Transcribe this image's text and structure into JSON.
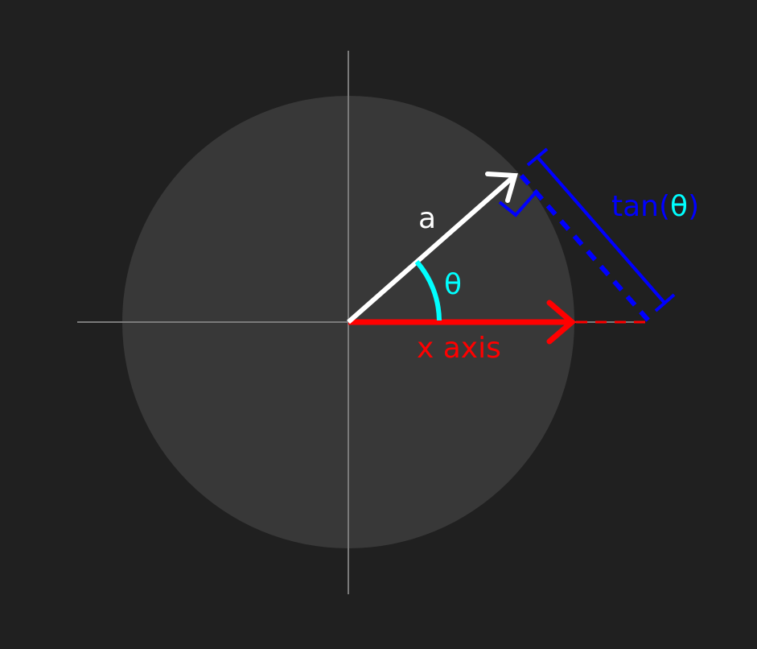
{
  "diagram": {
    "background_color": "#202020",
    "circle_color": "#383838",
    "axes_color": "#7a7a7a",
    "vector_color": "#ffffff",
    "angle_color": "#00ffff",
    "x_axis_color": "#ff0000",
    "tangent_color": "#0000ff",
    "labels": {
      "vector": "a",
      "angle": "θ",
      "x_axis": "x axis",
      "tangent_prefix": "tan(",
      "tangent_symbol": "θ",
      "tangent_suffix": ")"
    }
  }
}
